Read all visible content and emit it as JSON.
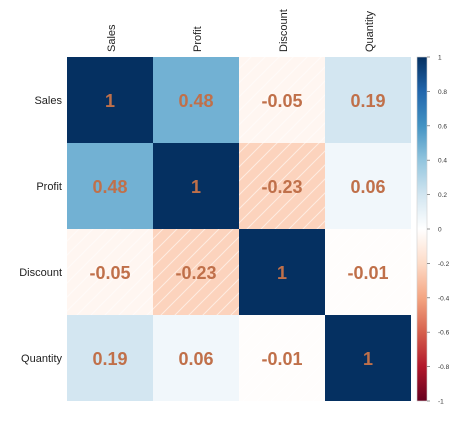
{
  "chart_data": {
    "type": "heatmap",
    "title": "",
    "variables": [
      "Sales",
      "Profit",
      "Discount",
      "Quantity"
    ],
    "matrix": [
      [
        1,
        0.48,
        -0.05,
        0.19
      ],
      [
        0.48,
        1,
        -0.23,
        0.06
      ],
      [
        -0.05,
        -0.23,
        1,
        -0.01
      ],
      [
        0.19,
        0.06,
        -0.01,
        1
      ]
    ],
    "cell_labels": [
      [
        "1",
        "0.48",
        "-0.05",
        "0.19"
      ],
      [
        "0.48",
        "1",
        "-0.23",
        "0.06"
      ],
      [
        "-0.05",
        "-0.23",
        "1",
        "-0.01"
      ],
      [
        "0.19",
        "0.06",
        "-0.01",
        "1"
      ]
    ],
    "negative_cells_hatched": true,
    "colorbar": {
      "range": [
        -1,
        1
      ],
      "ticks": [
        "1",
        "0.8",
        "0.6",
        "0.4",
        "0.2",
        "0",
        "-0.2",
        "-0.4",
        "-0.6",
        "-0.8",
        "-1"
      ],
      "colors": {
        "negative_end": "#67001f",
        "neutral": "#ffffff",
        "positive_end": "#053061"
      }
    },
    "value_text_color": "#c0704a",
    "column_labels_position": "top, rotated",
    "row_labels_position": "left"
  }
}
